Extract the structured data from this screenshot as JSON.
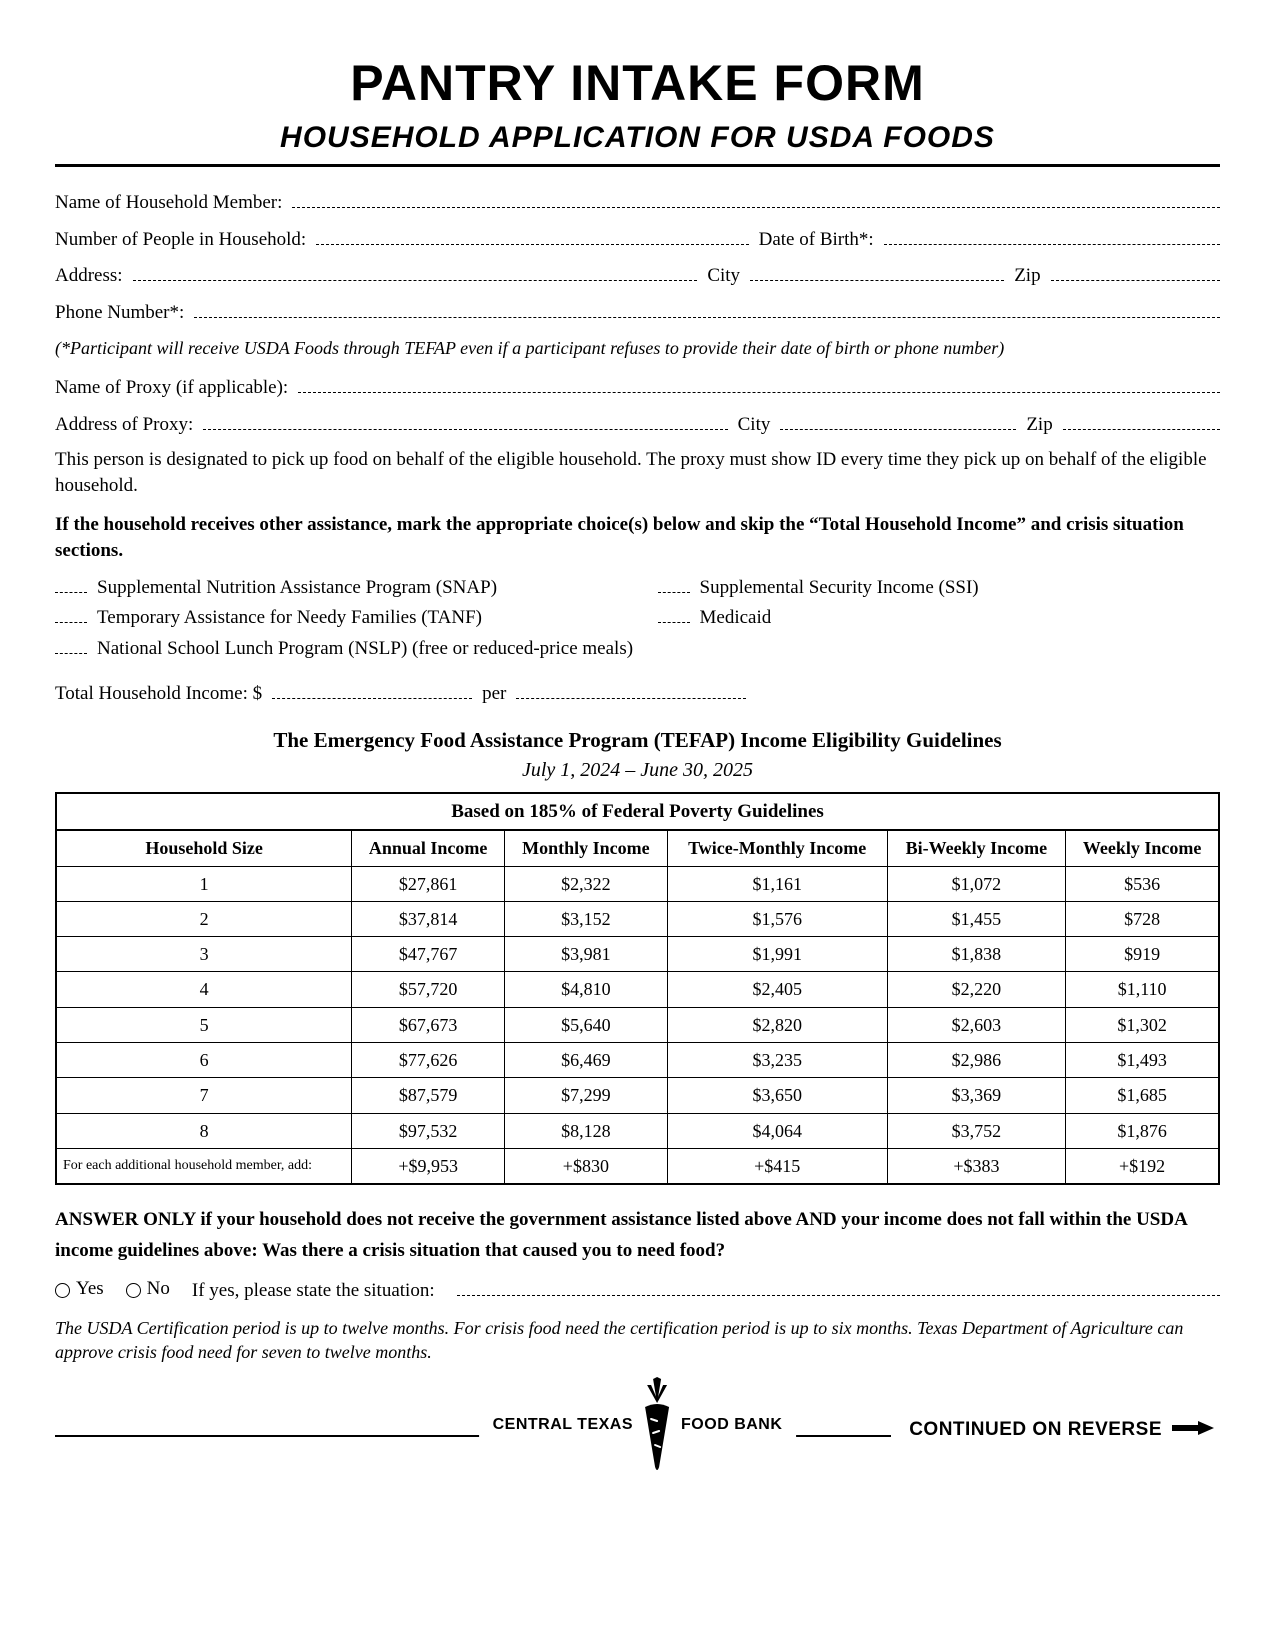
{
  "header": {
    "title": "PANTRY INTAKE FORM",
    "subtitle": "HOUSEHOLD APPLICATION FOR USDA FOODS"
  },
  "fields": {
    "name_label": "Name of Household Member:",
    "num_people_label": "Number of People in Household:",
    "dob_label": "Date of Birth*:",
    "address_label": "Address:",
    "city_label": "City",
    "zip_label": "Zip",
    "phone_label": "Phone Number*:",
    "dob_phone_note": "(*Participant will receive USDA Foods through TEFAP even if a participant refuses to provide their date of birth or phone number)",
    "proxy_name_label": "Name of Proxy (if applicable):",
    "proxy_address_label": "Address of Proxy:",
    "proxy_note": "This person is designated to pick up food on behalf of the eligible household. The proxy must show ID every time they pick up on behalf of the eligible household."
  },
  "assistance": {
    "instruction": "If the household receives other assistance, mark the appropriate choice(s) below and skip the “Total Household Income” and crisis situation sections.",
    "items": {
      "snap": "Supplemental Nutrition Assistance Program (SNAP)",
      "ssi": "Supplemental Security Income (SSI)",
      "tanf": "Temporary Assistance for Needy Families (TANF)",
      "medicaid": "Medicaid",
      "nslp": "National School Lunch Program (NSLP) (free or reduced-price meals)"
    }
  },
  "income": {
    "total_label_pre": "Total Household Income: $",
    "total_label_mid": "per"
  },
  "tefap": {
    "title": "The Emergency Food Assistance Program (TEFAP) Income Eligibility Guidelines",
    "dates": "July 1, 2024 – June 30, 2025",
    "caption": "Based on 185% of Federal Poverty Guidelines",
    "columns": [
      "Household Size",
      "Annual Income",
      "Monthly Income",
      "Twice-Monthly Income",
      "Bi-Weekly Income",
      "Weekly Income"
    ],
    "rows": [
      [
        "1",
        "$27,861",
        "$2,322",
        "$1,161",
        "$1,072",
        "$536"
      ],
      [
        "2",
        "$37,814",
        "$3,152",
        "$1,576",
        "$1,455",
        "$728"
      ],
      [
        "3",
        "$47,767",
        "$3,981",
        "$1,991",
        "$1,838",
        "$919"
      ],
      [
        "4",
        "$57,720",
        "$4,810",
        "$2,405",
        "$2,220",
        "$1,110"
      ],
      [
        "5",
        "$67,673",
        "$5,640",
        "$2,820",
        "$2,603",
        "$1,302"
      ],
      [
        "6",
        "$77,626",
        "$6,469",
        "$3,235",
        "$2,986",
        "$1,493"
      ],
      [
        "7",
        "$87,579",
        "$7,299",
        "$3,650",
        "$3,369",
        "$1,685"
      ],
      [
        "8",
        "$97,532",
        "$8,128",
        "$4,064",
        "$3,752",
        "$1,876"
      ]
    ],
    "addl_label": "For each additional household member, add:",
    "addl_row": [
      "+$9,953",
      "+$830",
      "+$415",
      "+$383",
      "+$192"
    ]
  },
  "crisis": {
    "question": "ANSWER ONLY if your household does not receive the government assistance listed above AND your income does not fall within the USDA income guidelines above: Was there a crisis situation that caused you to need food?",
    "yes": "Yes",
    "no": "No",
    "ifyes": "If yes, please state the situation:",
    "cert_note": "The USDA Certification period is up to twelve months. For crisis food need the certification period is up to six months. Texas Department of Agriculture can approve crisis food need for seven to twelve months."
  },
  "footer": {
    "brand_left": "CENTRAL TEXAS",
    "brand_right": "FOOD BANK",
    "continued": "CONTINUED ON REVERSE"
  }
}
